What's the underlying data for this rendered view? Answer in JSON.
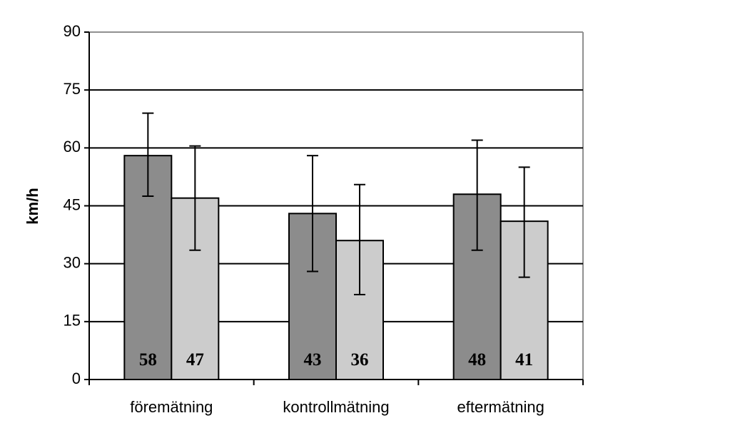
{
  "chart_data": {
    "type": "bar",
    "title": "",
    "xlabel": "",
    "ylabel": "km/h",
    "ylim": [
      0,
      90
    ],
    "yticks": [
      0,
      15,
      30,
      45,
      60,
      75,
      90
    ],
    "grid": true,
    "legend": "none",
    "categories": [
      "föremätning",
      "kontrollmätning",
      "eftermätning"
    ],
    "series": [
      {
        "color": "#8c8c8c",
        "values": [
          58,
          43,
          48
        ],
        "labels": [
          "58",
          "43",
          "48"
        ],
        "error_low": [
          47.5,
          28,
          33.5
        ],
        "error_high": [
          69,
          58,
          62
        ]
      },
      {
        "color": "#cccccc",
        "values": [
          47,
          36,
          41
        ],
        "labels": [
          "47",
          "36",
          "41"
        ],
        "error_low": [
          33.5,
          22,
          26.5
        ],
        "error_high": [
          60.5,
          50.5,
          55
        ]
      }
    ]
  }
}
